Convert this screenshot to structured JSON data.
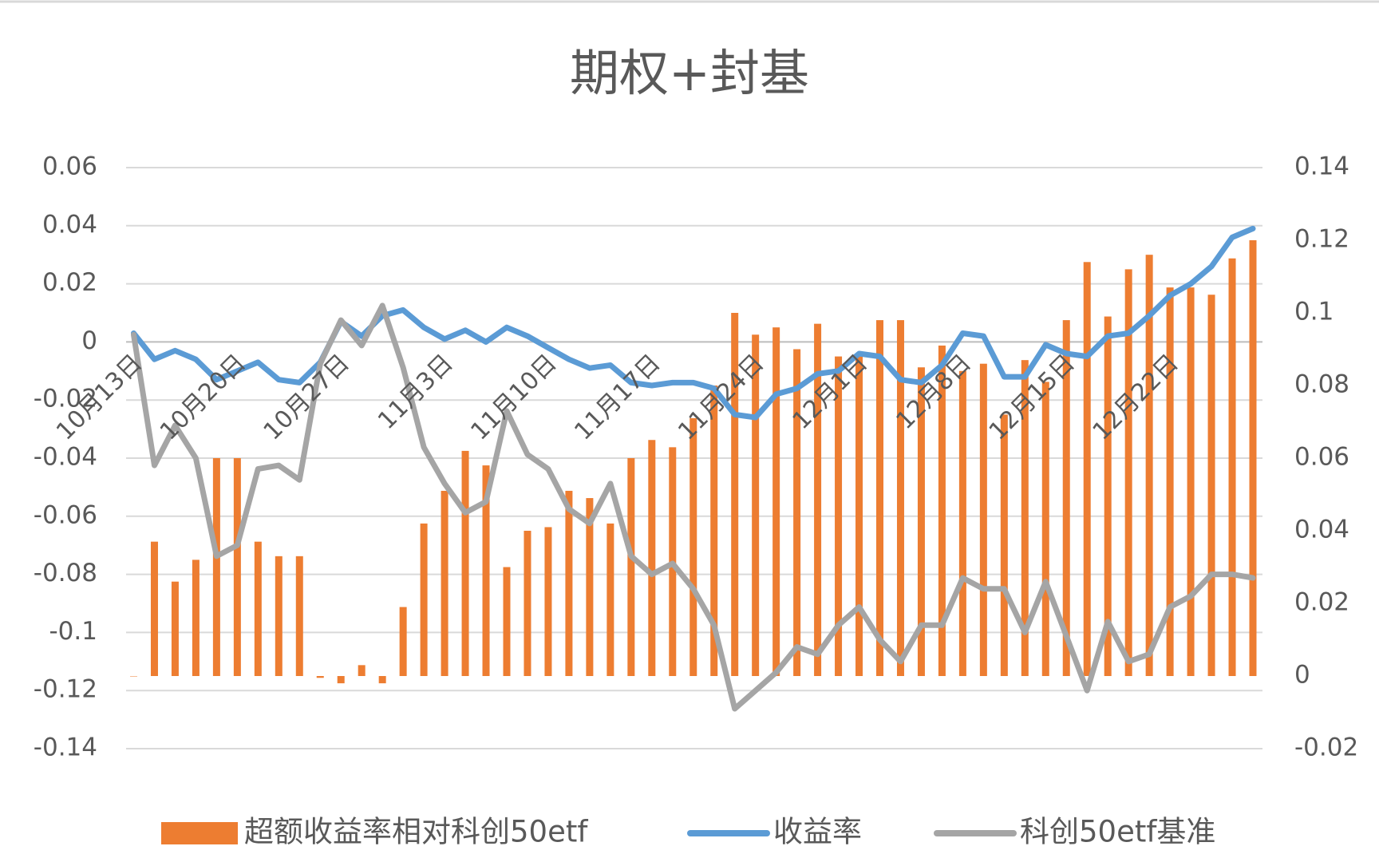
{
  "chart_data": {
    "type": "combo",
    "title": "期权+封基",
    "categories": [
      "10月13日",
      null,
      null,
      null,
      null,
      "10月20日",
      null,
      null,
      null,
      null,
      "10月27日",
      null,
      null,
      null,
      null,
      "11月3日",
      null,
      null,
      null,
      null,
      "11月10日",
      null,
      null,
      null,
      null,
      "11月17日",
      null,
      null,
      null,
      null,
      "11月24日",
      null,
      null,
      null,
      null,
      "12月1日",
      null,
      null,
      null,
      null,
      "12月8日",
      null,
      null,
      null,
      null,
      "12月15日",
      null,
      null,
      null,
      null,
      "12月22日",
      null,
      null,
      null,
      null
    ],
    "series": [
      {
        "name": "超额收益率相对科创50etf",
        "type": "bar",
        "axis": "y2",
        "color": "#ed7d31",
        "values": [
          0,
          0.037,
          0.026,
          0.032,
          0.06,
          0.06,
          0.037,
          0.033,
          0.033,
          -0.0005,
          -0.002,
          0.003,
          -0.002,
          0.019,
          0.042,
          0.051,
          0.062,
          0.058,
          0.03,
          0.04,
          0.041,
          0.051,
          0.049,
          0.042,
          0.06,
          0.065,
          0.063,
          0.071,
          0.08,
          0.1,
          0.094,
          0.096,
          0.09,
          0.097,
          0.088,
          0.088,
          0.098,
          0.098,
          0.085,
          0.091,
          0.084,
          0.086,
          0.072,
          0.087,
          0.081,
          0.098,
          0.114,
          0.099,
          0.112,
          0.116,
          0.107,
          0.107,
          0.105,
          0.115,
          0.12
        ]
      },
      {
        "name": "收益率",
        "type": "line",
        "color": "#5b9bd5",
        "values": [
          0.003,
          -0.006,
          -0.003,
          -0.006,
          -0.013,
          -0.01,
          -0.007,
          -0.013,
          -0.014,
          -0.007,
          0.007,
          0.002,
          0.009,
          0.011,
          0.005,
          0.001,
          0.004,
          0.0,
          0.005,
          0.002,
          -0.002,
          -0.006,
          -0.009,
          -0.008,
          -0.014,
          -0.015,
          -0.014,
          -0.014,
          -0.016,
          -0.025,
          -0.026,
          -0.018,
          -0.016,
          -0.011,
          -0.01,
          -0.004,
          -0.005,
          -0.013,
          -0.014,
          -0.008,
          0.003,
          0.002,
          -0.012,
          -0.012,
          -0.001,
          -0.004,
          -0.005,
          0.002,
          0.003,
          0.009,
          0.016,
          0.02,
          0.026,
          0.036,
          0.039
        ]
      },
      {
        "name": "科创50etf基准",
        "type": "line",
        "axis": "y2",
        "color": "#a5a5a5",
        "values": [
          0.094,
          0.058,
          0.069,
          0.06,
          0.033,
          0.036,
          0.057,
          0.058,
          0.054,
          0.086,
          0.098,
          0.091,
          0.102,
          0.085,
          0.063,
          0.053,
          0.045,
          0.048,
          0.073,
          0.061,
          0.057,
          0.046,
          0.042,
          0.053,
          0.033,
          0.028,
          0.031,
          0.024,
          0.014,
          -0.009,
          -0.004,
          0.001,
          0.008,
          0.006,
          0.014,
          0.019,
          0.01,
          0.004,
          0.014,
          0.014,
          0.027,
          0.024,
          0.024,
          0.012,
          0.026,
          0.011,
          -0.004,
          0.015,
          0.004,
          0.006,
          0.019,
          0.022,
          0.028,
          0.028,
          0.027
        ]
      }
    ],
    "ylim": [
      -0.14,
      0.06
    ],
    "yticks": [
      -0.14,
      -0.12,
      -0.1,
      -0.08,
      -0.06,
      -0.04,
      -0.02,
      0,
      0.02,
      0.04,
      0.06
    ],
    "y2lim": [
      -0.02,
      0.14
    ],
    "y2ticks": [
      -0.02,
      0,
      0.02,
      0.04,
      0.06,
      0.08,
      0.1,
      0.12,
      0.14
    ],
    "grid": true,
    "legend": "bottom"
  }
}
